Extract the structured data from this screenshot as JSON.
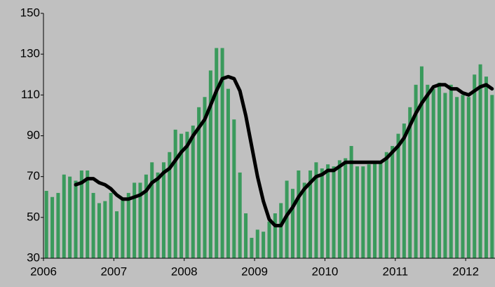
{
  "chart_data": {
    "type": "bar-line",
    "categories": [
      "2006",
      null,
      null,
      null,
      null,
      null,
      null,
      null,
      null,
      null,
      null,
      null,
      "2007",
      null,
      null,
      null,
      null,
      null,
      null,
      null,
      null,
      null,
      null,
      null,
      "2008",
      null,
      null,
      null,
      null,
      null,
      null,
      null,
      null,
      null,
      null,
      null,
      "2009",
      null,
      null,
      null,
      null,
      null,
      null,
      null,
      null,
      null,
      null,
      null,
      "2010",
      null,
      null,
      null,
      null,
      null,
      null,
      null,
      null,
      null,
      null,
      null,
      "2011",
      null,
      null,
      null,
      null,
      null,
      null,
      null,
      null,
      null,
      null,
      null,
      "2012",
      null,
      null,
      null,
      null
    ],
    "series": [
      {
        "type": "bar",
        "color": "#3a9a5c",
        "values": [
          63,
          60,
          62,
          71,
          70,
          68,
          73,
          73,
          62,
          57,
          58,
          62,
          53,
          59,
          62,
          67,
          67,
          71,
          77,
          72,
          77,
          82,
          93,
          91,
          92,
          95,
          104,
          109,
          122,
          133,
          133,
          113,
          98,
          72,
          52,
          40,
          44,
          43,
          48,
          52,
          57,
          68,
          64,
          73,
          67,
          73,
          77,
          74,
          76,
          75,
          78,
          79,
          85,
          75,
          75,
          76,
          77,
          77,
          82,
          85,
          91,
          96,
          104,
          115,
          124,
          115,
          113,
          116,
          111,
          115,
          109,
          110,
          109,
          120,
          125,
          119,
          110
        ]
      },
      {
        "type": "line",
        "color": "#000000",
        "values": [
          null,
          null,
          null,
          null,
          null,
          66,
          67,
          69,
          69,
          67,
          66,
          64,
          61,
          59,
          59,
          60,
          61,
          63,
          67,
          69,
          72,
          74,
          78,
          82,
          85,
          90,
          94,
          98,
          105,
          112,
          118,
          119,
          118,
          112,
          100,
          85,
          70,
          58,
          49,
          46,
          46,
          51,
          55,
          60,
          64,
          67,
          70,
          71,
          73,
          73,
          75,
          77,
          77,
          77,
          77,
          77,
          77,
          77,
          79,
          82,
          85,
          89,
          95,
          101,
          106,
          110,
          114,
          115,
          115,
          113,
          113,
          111,
          110,
          112,
          114,
          115,
          113
        ]
      }
    ],
    "ylim": [
      30,
      150
    ],
    "yticks": [
      30,
      50,
      70,
      90,
      110,
      130,
      150
    ],
    "grid": false
  }
}
